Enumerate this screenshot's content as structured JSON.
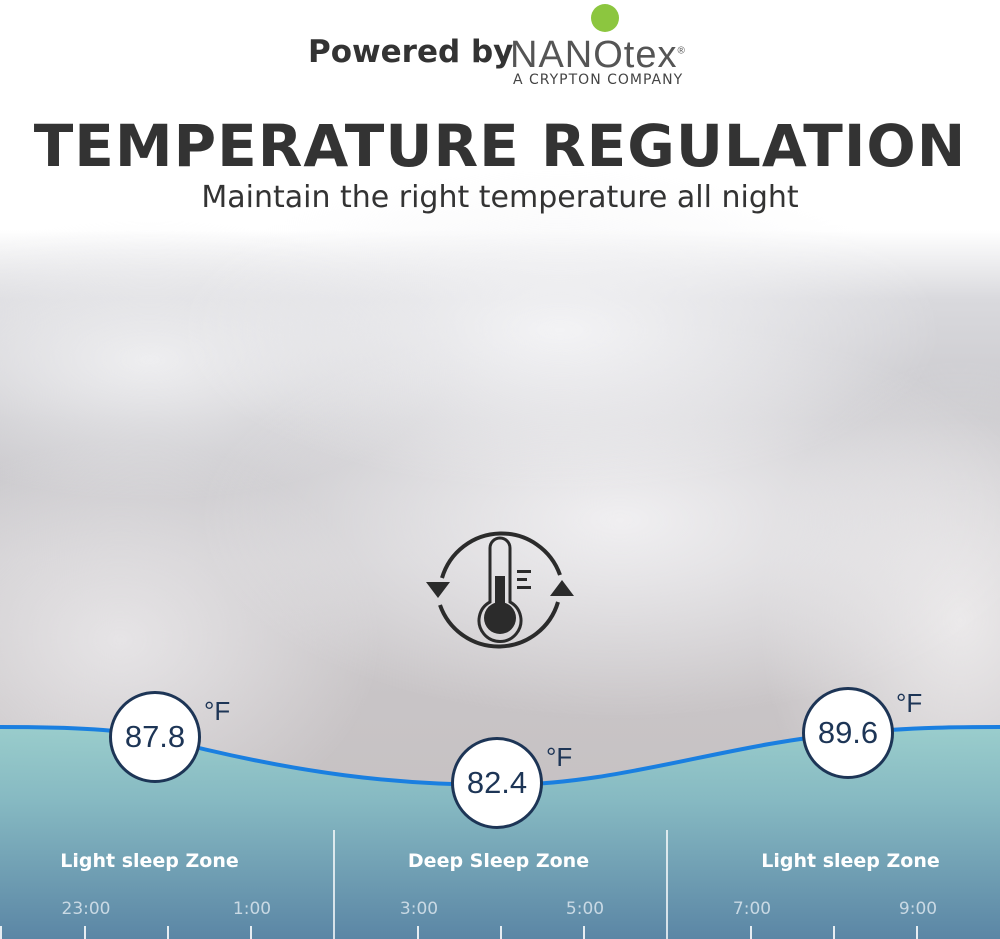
{
  "header": {
    "powered_by": "Powered by",
    "logo_text": "NANOtex",
    "logo_registered": "®",
    "logo_subtitle": "A CRYPTON COMPANY",
    "logo_dot_color": "#8cc63f"
  },
  "title": "TEMPERATURE REGULATION",
  "subtitle": "Maintain the right temperature all night",
  "icon": "thermometer-cycle-icon",
  "temperatures": [
    {
      "value": "87.8",
      "unit": "°F"
    },
    {
      "value": "82.4",
      "unit": "°F"
    },
    {
      "value": "89.6",
      "unit": "°F"
    }
  ],
  "zones": [
    "Light sleep Zone",
    "Deep Sleep Zone",
    "Light sleep Zone"
  ],
  "times": [
    "23:00",
    "1:00",
    "3:00",
    "5:00",
    "7:00",
    "9:00"
  ],
  "colors": {
    "curve": "#1a7fe0",
    "bubble_border": "#1d3556",
    "band_top": "#8fcac9",
    "band_bottom": "#5e8aa8"
  }
}
